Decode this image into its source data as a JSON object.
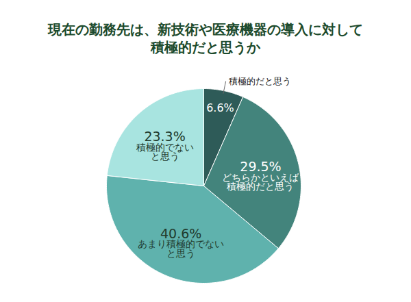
{
  "chart_data": {
    "type": "pie",
    "title": "現在の勤務先は、新技術や医療機器の導入に対して\n積極的だと思うか",
    "categories": [
      "積極的だと思う",
      "どちらかといえば\n積極的だと思う",
      "あまり積極的でない\nと思う",
      "積極的でない\nと思う"
    ],
    "values": [
      6.6,
      29.5,
      40.6,
      23.3
    ],
    "value_labels": [
      "6.6%",
      "29.5%",
      "40.6%",
      "23.3%"
    ],
    "colors": [
      "#2e5b58",
      "#43847c",
      "#5fb2ad",
      "#a8e4e0"
    ],
    "data_labels": true
  }
}
